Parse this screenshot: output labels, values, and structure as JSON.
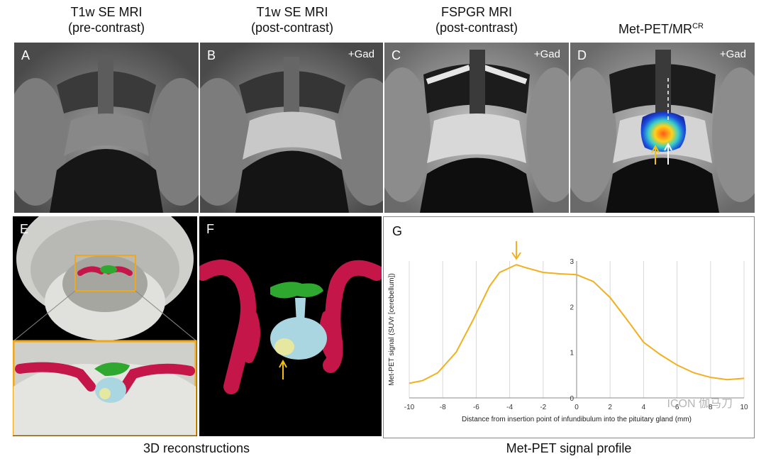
{
  "headers": {
    "col_a": [
      "T1w SE MRI",
      "(pre-contrast)"
    ],
    "col_b": [
      "T1w SE MRI",
      "(post-contrast)"
    ],
    "col_c": [
      "FSPGR MRI",
      "(post-contrast)"
    ],
    "col_d": "Met-PET/MR",
    "col_d_sup": "CR"
  },
  "panels": {
    "a": {
      "label": "A"
    },
    "b": {
      "label": "B",
      "tag": "+Gad"
    },
    "c": {
      "label": "C",
      "tag": "+Gad"
    },
    "d": {
      "label": "D",
      "tag": "+Gad"
    },
    "e": {
      "label": "E"
    },
    "f": {
      "label": "F"
    },
    "g": {
      "label": "G"
    }
  },
  "captions": {
    "left": "3D reconstructions",
    "right": "Met-PET signal profile"
  },
  "watermark": "ICON 伽马刀",
  "colors": {
    "vessel": "#c5164a",
    "chiasm": "#2fa82f",
    "pituitary": "#a9d6e0",
    "tumor": "#e6e8a0",
    "arrow": "#f4c20d",
    "line": "#f2b01e",
    "box": "#f0a818"
  },
  "chart_data": {
    "type": "line",
    "xlabel": "Distance from insertion point of infundibulum into the pituitary gland (mm)",
    "ylabel": "Met-PET signal (SUVr [cerebellum])",
    "xlim": [
      -10,
      10
    ],
    "ylim": [
      0,
      3
    ],
    "xticks": [
      "-10",
      "-8",
      "-6",
      "-4",
      "-2",
      "0",
      "2",
      "4",
      "6",
      "8",
      "10"
    ],
    "yticks": [
      "0",
      "1",
      "2",
      "3"
    ],
    "grid": "vertical",
    "peak_marker_x": -3.6,
    "series": [
      {
        "x": [
          -10,
          -9.2,
          -8.3,
          -7.2,
          -6.2,
          -5.2,
          -4.6,
          -3.6,
          -3.0,
          -2.0,
          -1.0,
          0.0,
          1.0,
          2.0,
          3.0,
          4.0,
          5.0,
          6.0,
          7.0,
          8.0,
          9.0,
          10.0
        ],
        "values": [
          0.32,
          0.38,
          0.55,
          1.0,
          1.7,
          2.45,
          2.75,
          2.92,
          2.85,
          2.75,
          2.72,
          2.7,
          2.55,
          2.2,
          1.72,
          1.22,
          0.95,
          0.72,
          0.55,
          0.45,
          0.4,
          0.43
        ]
      }
    ]
  }
}
